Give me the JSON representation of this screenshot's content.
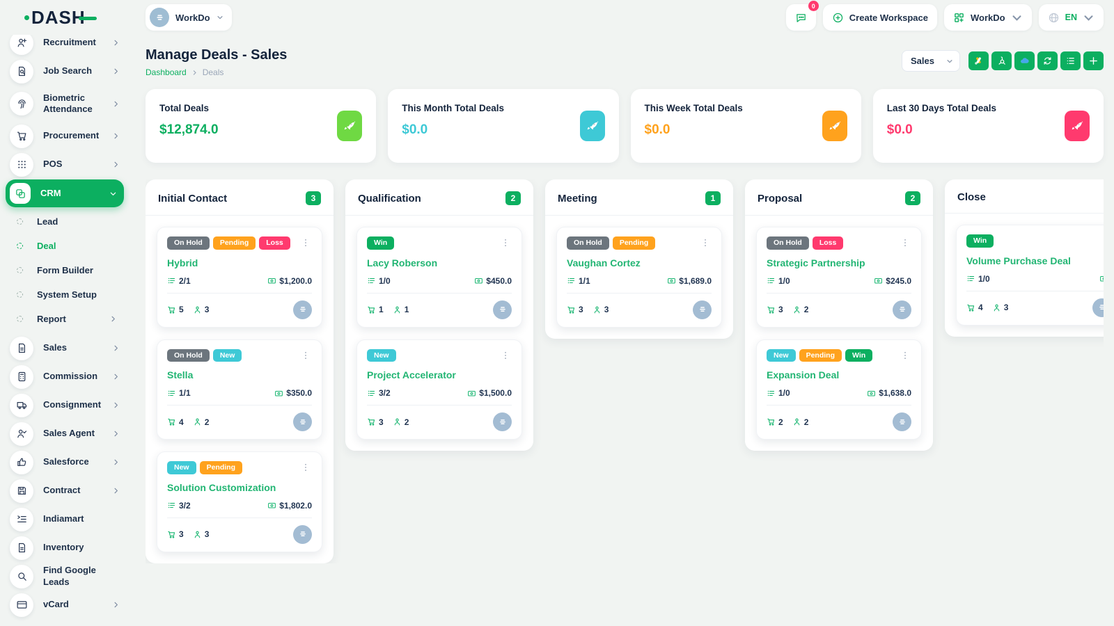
{
  "colors": {
    "primary": "#0CAF60",
    "deal_title": "#22B573",
    "status": {
      "On Hold": "#6C757D",
      "Pending": "#FFA21D",
      "Loss": "#FF3A6E",
      "New": "#3EC9D6",
      "Win": "#0CAF60"
    }
  },
  "brand": {
    "name": "DASH"
  },
  "topbar": {
    "workspace_pill": {
      "name": "WorkDo",
      "icon": "building-icon"
    },
    "chat": {
      "badge": "0",
      "icon": "chat-icon"
    },
    "create_workspace": {
      "label": "Create Workspace",
      "icon": "plus-circle-icon"
    },
    "workspace_menu": {
      "label": "WorkDo",
      "icon": "workdo-grid-icon"
    },
    "language": {
      "label": "EN",
      "icon": "globe-icon"
    }
  },
  "page": {
    "title": "Manage Deals - Sales",
    "breadcrumb": {
      "home": "Dashboard",
      "current": "Deals"
    }
  },
  "toolbar": {
    "pipeline_select": {
      "value": "Sales"
    },
    "buttons": [
      {
        "icon": "google-ads-icon"
      },
      {
        "icon": "hubspot-icon"
      },
      {
        "icon": "onedrive-icon"
      },
      {
        "icon": "refresh-icon"
      },
      {
        "icon": "list-icon"
      },
      {
        "icon": "plus-icon"
      }
    ]
  },
  "stats": [
    {
      "label": "Total Deals",
      "value": "$12,874.0",
      "value_color": "#0CAF60",
      "icon_bg": "#6FD943",
      "icon": "rocket-icon"
    },
    {
      "label": "This Month Total Deals",
      "value": "$0.0",
      "value_color": "#3EC9D6",
      "icon_bg": "#3EC9D6",
      "icon": "rocket-icon"
    },
    {
      "label": "This Week Total Deals",
      "value": "$0.0",
      "value_color": "#FFA21D",
      "icon_bg": "#FFA21D",
      "icon": "rocket-icon"
    },
    {
      "label": "Last 30 Days Total Deals",
      "value": "$0.0",
      "value_color": "#FF3A6E",
      "icon_bg": "#FF3A6E",
      "icon": "rocket-icon"
    }
  ],
  "sidebar": {
    "items": [
      {
        "label": "Recruitment",
        "icon": "user-plus-icon",
        "chevron": true
      },
      {
        "label": "Job Search",
        "icon": "document-search-icon",
        "chevron": true
      },
      {
        "label": "Biometric Attendance",
        "icon": "fingerprint-icon",
        "chevron": true,
        "tall": true
      },
      {
        "label": "Procurement",
        "icon": "cart-icon",
        "chevron": true
      },
      {
        "label": "POS",
        "icon": "grid-dots-icon",
        "chevron": true
      },
      {
        "label": "CRM",
        "icon": "crm-icon",
        "chevron": true,
        "active": true,
        "children": [
          {
            "label": "Lead"
          },
          {
            "label": "Deal",
            "active": true
          },
          {
            "label": "Form Builder"
          },
          {
            "label": "System Setup"
          },
          {
            "label": "Report",
            "chevron": true
          }
        ]
      },
      {
        "label": "Sales",
        "icon": "file-icon",
        "chevron": true
      },
      {
        "label": "Commission",
        "icon": "calculator-icon",
        "chevron": true
      },
      {
        "label": "Consignment",
        "icon": "truck-icon",
        "chevron": true
      },
      {
        "label": "Sales Agent",
        "icon": "user-check-icon",
        "chevron": true
      },
      {
        "label": "Salesforce",
        "icon": "thumbs-up-icon",
        "chevron": true
      },
      {
        "label": "Contract",
        "icon": "save-icon",
        "chevron": true
      },
      {
        "label": "Indiamart",
        "icon": "list-arrow-icon",
        "chevron": false
      },
      {
        "label": "Inventory",
        "icon": "file-icon",
        "chevron": false
      },
      {
        "label": "Find Google Leads",
        "icon": "search-icon",
        "chevron": false
      },
      {
        "label": "vCard",
        "icon": "card-icon",
        "chevron": true
      }
    ]
  },
  "kanban": {
    "columns": [
      {
        "name": "Initial Contact",
        "count": "3",
        "cards": [
          {
            "badges": [
              "On Hold",
              "Pending",
              "Loss"
            ],
            "title": "Hybrid",
            "tasks": "2/1",
            "amount": "$1,200.0",
            "products": "5",
            "users": "3"
          },
          {
            "badges": [
              "On Hold",
              "New"
            ],
            "title": "Stella",
            "tasks": "1/1",
            "amount": "$350.0",
            "products": "4",
            "users": "2"
          },
          {
            "badges": [
              "New",
              "Pending"
            ],
            "title": "Solution Customization",
            "tasks": "3/2",
            "amount": "$1,802.0",
            "products": "3",
            "users": "3"
          }
        ]
      },
      {
        "name": "Qualification",
        "count": "2",
        "cards": [
          {
            "badges": [
              "Win"
            ],
            "title": "Lacy Roberson",
            "tasks": "1/0",
            "amount": "$450.0",
            "products": "1",
            "users": "1"
          },
          {
            "badges": [
              "New"
            ],
            "title": "Project Accelerator",
            "tasks": "3/2",
            "amount": "$1,500.0",
            "products": "3",
            "users": "2"
          }
        ]
      },
      {
        "name": "Meeting",
        "count": "1",
        "cards": [
          {
            "badges": [
              "On Hold",
              "Pending"
            ],
            "title": "Vaughan Cortez",
            "tasks": "1/1",
            "amount": "$1,689.0",
            "products": "3",
            "users": "3"
          }
        ]
      },
      {
        "name": "Proposal",
        "count": "2",
        "cards": [
          {
            "badges": [
              "On Hold",
              "Loss"
            ],
            "title": "Strategic Partnership",
            "tasks": "1/0",
            "amount": "$245.0",
            "products": "3",
            "users": "2"
          },
          {
            "badges": [
              "New",
              "Pending",
              "Win"
            ],
            "title": "Expansion Deal",
            "tasks": "1/0",
            "amount": "$1,638.0",
            "products": "2",
            "users": "2"
          }
        ]
      },
      {
        "name": "Close",
        "count": "",
        "cards": [
          {
            "badges": [
              "Win"
            ],
            "title": "Volume Purchase Deal",
            "tasks": "1/0",
            "amount": "",
            "products": "4",
            "users": "3"
          }
        ]
      }
    ]
  }
}
